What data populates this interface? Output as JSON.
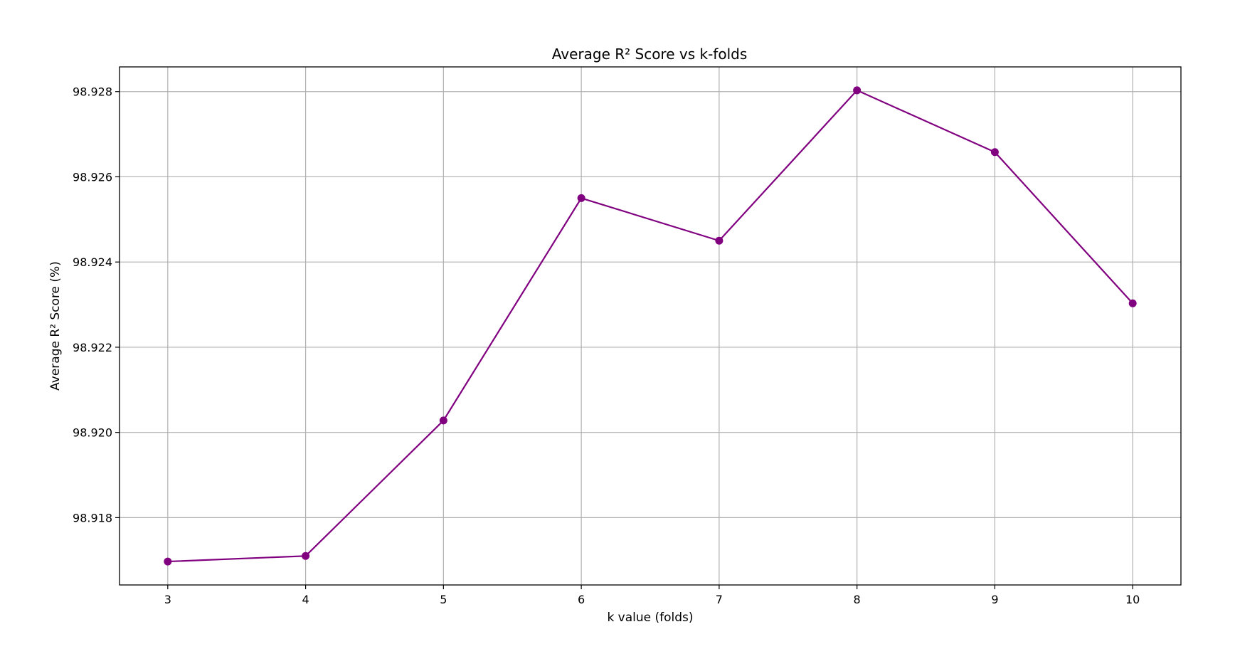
{
  "chart_data": {
    "type": "line",
    "title": "Average R² Score vs k-folds",
    "xlabel": "k value (folds)",
    "ylabel": "Average R² Score (%)",
    "x": [
      3,
      4,
      5,
      6,
      7,
      8,
      9,
      10
    ],
    "series": [
      {
        "values": [
          98.91697,
          98.9171,
          98.92028,
          98.9255,
          98.9245,
          98.92803,
          98.92658,
          98.92303
        ],
        "color": "#800080",
        "marker": "circle"
      }
    ],
    "xticks": [
      3,
      4,
      5,
      6,
      7,
      8,
      9,
      10
    ],
    "yticks": [
      "98.918",
      "98.920",
      "98.922",
      "98.924",
      "98.926",
      "98.928"
    ],
    "ytick_values": [
      98.918,
      98.92,
      98.922,
      98.924,
      98.926,
      98.928
    ],
    "xlim": [
      2.65,
      10.35
    ],
    "ylim": [
      98.91642,
      98.92858
    ],
    "grid": true
  }
}
